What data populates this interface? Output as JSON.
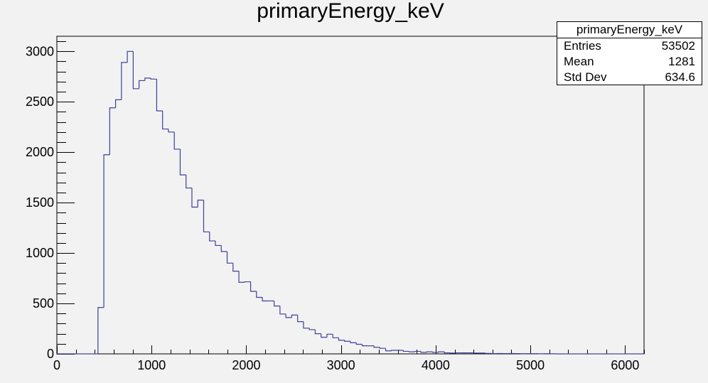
{
  "chart_data": {
    "type": "bar",
    "title": "primaryEnergy_keV",
    "xlabel": "",
    "ylabel": "",
    "xlim": [
      0,
      6200
    ],
    "ylim": [
      0,
      3150
    ],
    "x_ticks": [
      0,
      1000,
      2000,
      3000,
      4000,
      5000,
      6000
    ],
    "y_ticks": [
      0,
      500,
      1000,
      1500,
      2000,
      2500,
      3000
    ],
    "bin_width": 62,
    "bin_starts": [
      0,
      62,
      124,
      186,
      248,
      310,
      372,
      434,
      496,
      558,
      620,
      682,
      744,
      806,
      868,
      930,
      992,
      1054,
      1116,
      1178,
      1240,
      1302,
      1364,
      1426,
      1488,
      1550,
      1612,
      1674,
      1736,
      1798,
      1860,
      1922,
      1984,
      2046,
      2108,
      2170,
      2232,
      2294,
      2356,
      2418,
      2480,
      2542,
      2604,
      2666,
      2728,
      2790,
      2852,
      2914,
      2976,
      3038,
      3100,
      3162,
      3224,
      3286,
      3348,
      3410,
      3472,
      3534,
      3596,
      3658,
      3720,
      3782,
      3844,
      3906,
      3968,
      4030,
      4092,
      4154,
      4216,
      4278,
      4340,
      4402,
      4464,
      4526,
      4588,
      4650,
      4712,
      4774,
      4836,
      4898,
      4960,
      5022,
      5084,
      5146,
      5208,
      5270,
      5332,
      5394,
      5456,
      5518,
      5580,
      5642,
      5704,
      5766,
      5828,
      5890,
      5952,
      6014,
      6076,
      6138
    ],
    "values": [
      0,
      0,
      0,
      0,
      0,
      0,
      0,
      460,
      1975,
      2440,
      2520,
      2890,
      3000,
      2630,
      2710,
      2735,
      2725,
      2410,
      2230,
      2200,
      2030,
      1775,
      1645,
      1455,
      1525,
      1210,
      1120,
      1075,
      1015,
      900,
      820,
      710,
      715,
      620,
      560,
      525,
      525,
      475,
      395,
      360,
      385,
      320,
      255,
      240,
      200,
      165,
      195,
      160,
      135,
      125,
      110,
      95,
      80,
      80,
      65,
      55,
      30,
      35,
      35,
      25,
      20,
      25,
      15,
      20,
      15,
      20,
      10,
      8,
      10,
      10,
      10,
      8,
      8,
      5,
      3,
      4,
      3,
      4,
      3,
      2,
      2,
      2,
      1,
      2,
      1,
      0,
      0,
      0,
      0,
      0,
      0,
      0,
      0,
      0,
      0,
      0,
      0,
      0,
      0,
      0
    ],
    "line_color": "#3f3f9c",
    "axis_color": "#000000",
    "background": "#f2f2f2",
    "grid": false,
    "legend": "top-right",
    "stats_box": {
      "title": "primaryEnergy_keV",
      "rows": [
        {
          "label": "Entries",
          "value": "53502"
        },
        {
          "label": "Mean",
          "value": "1281"
        },
        {
          "label": "Std Dev",
          "value": "634.6"
        }
      ]
    }
  }
}
